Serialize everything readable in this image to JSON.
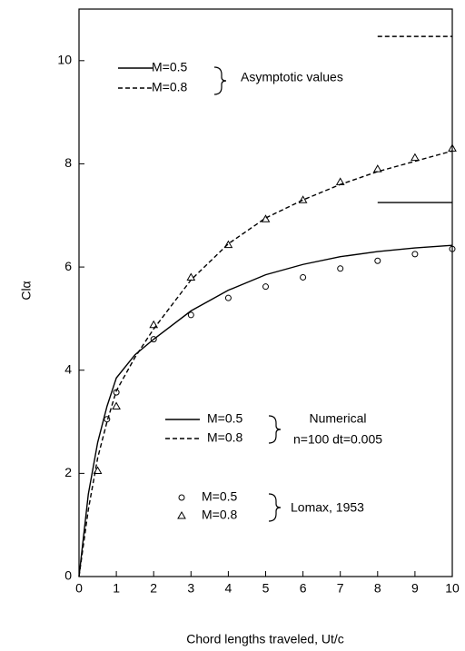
{
  "chart_data": {
    "type": "line",
    "xlabel": "Chord lengths traveled, Ut/c",
    "ylabel": "Clα",
    "xlim": [
      0,
      10
    ],
    "ylim": [
      0,
      11
    ],
    "xticks": [
      0,
      1,
      2,
      3,
      4,
      5,
      6,
      7,
      8,
      9,
      10
    ],
    "yticks": [
      0,
      2,
      4,
      6,
      8,
      10
    ],
    "legend_groups": [
      {
        "labels": [
          "Asymptotic values"
        ]
      },
      {
        "labels": [
          "Numerical",
          "n=100 dt=0.005"
        ]
      },
      {
        "labels": [
          "Lomax, 1953"
        ]
      }
    ],
    "series": [
      {
        "name": "M=0.5",
        "group": 0,
        "style": "solid",
        "color": "#000000",
        "x": [
          8,
          10
        ],
        "values": [
          7.25,
          7.25
        ]
      },
      {
        "name": "M=0.8",
        "group": 0,
        "style": "dashed",
        "color": "#000000",
        "x": [
          8,
          10
        ],
        "values": [
          10.47,
          10.47
        ]
      },
      {
        "name": "M=0.5",
        "group": 1,
        "style": "solid",
        "color": "#000000",
        "x": [
          0,
          0.25,
          0.5,
          0.75,
          1,
          1.5,
          2,
          3,
          4,
          5,
          6,
          7,
          8,
          9,
          10
        ],
        "values": [
          0,
          1.6,
          2.6,
          3.3,
          3.85,
          4.3,
          4.6,
          5.15,
          5.55,
          5.85,
          6.05,
          6.2,
          6.3,
          6.37,
          6.42
        ]
      },
      {
        "name": "M=0.8",
        "group": 1,
        "style": "dashed",
        "color": "#000000",
        "x": [
          0,
          0.25,
          0.5,
          0.75,
          1,
          1.5,
          2,
          3,
          4,
          5,
          6,
          7,
          8,
          9,
          10
        ],
        "values": [
          0,
          1.3,
          2.3,
          3.0,
          3.6,
          4.25,
          4.8,
          5.75,
          6.45,
          6.95,
          7.3,
          7.6,
          7.85,
          8.05,
          8.25
        ]
      },
      {
        "name": "M=0.5",
        "group": 2,
        "style": "circle",
        "color": "#000000",
        "x": [
          0.75,
          1,
          2,
          3,
          4,
          5,
          6,
          7,
          8,
          9,
          10
        ],
        "values": [
          3.05,
          3.57,
          4.6,
          5.07,
          5.4,
          5.62,
          5.8,
          5.97,
          6.12,
          6.25,
          6.35
        ]
      },
      {
        "name": "M=0.8",
        "group": 2,
        "style": "triangle",
        "color": "#000000",
        "x": [
          0.5,
          1,
          2,
          3,
          4,
          5,
          6,
          7,
          8,
          9,
          10
        ],
        "values": [
          2.05,
          3.3,
          4.88,
          5.8,
          6.43,
          6.93,
          7.3,
          7.65,
          7.9,
          8.12,
          8.3
        ]
      }
    ]
  }
}
